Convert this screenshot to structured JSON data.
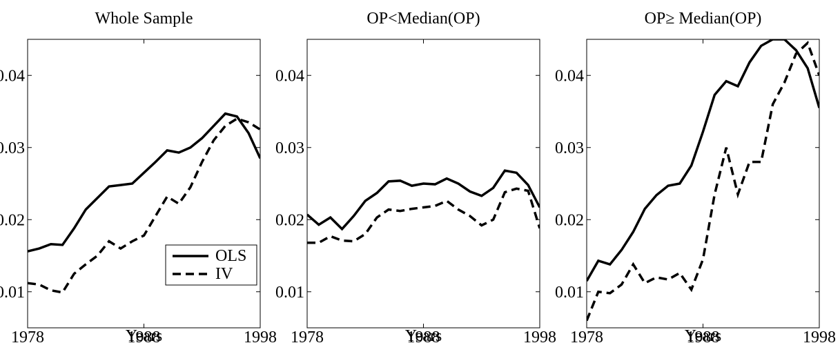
{
  "chart_data": [
    {
      "type": "line",
      "title": "Whole Sample",
      "xlabel": "Years",
      "x": [
        1978,
        1979,
        1980,
        1981,
        1982,
        1983,
        1984,
        1985,
        1986,
        1987,
        1988,
        1989,
        1990,
        1991,
        1992,
        1993,
        1994,
        1995,
        1996,
        1997,
        1998
      ],
      "series": [
        {
          "name": "OLS",
          "color": "#000000",
          "style": "solid",
          "values": [
            0.0156,
            0.016,
            0.0166,
            0.0165,
            0.0188,
            0.0214,
            0.023,
            0.0246,
            0.0248,
            0.025,
            0.0265,
            0.028,
            0.0296,
            0.0293,
            0.03,
            0.0313,
            0.033,
            0.0347,
            0.0343,
            0.032,
            0.0285
          ]
        },
        {
          "name": "IV",
          "color": "#000000",
          "style": "dashed",
          "values": [
            0.0112,
            0.011,
            0.0102,
            0.0099,
            0.0125,
            0.0138,
            0.015,
            0.017,
            0.016,
            0.017,
            0.0178,
            0.0205,
            0.0232,
            0.0222,
            0.0245,
            0.028,
            0.031,
            0.033,
            0.034,
            0.0335,
            0.0325
          ]
        }
      ],
      "xlim": [
        1978,
        1998
      ],
      "xticks": [
        1978,
        1988,
        1998
      ],
      "ylim": [
        0.005,
        0.045
      ],
      "yticks": [
        0.01,
        0.02,
        0.03,
        0.04
      ],
      "legend": "lower right"
    },
    {
      "type": "line",
      "title": "OP<Median(OP)",
      "xlabel": "Years",
      "x": [
        1978,
        1979,
        1980,
        1981,
        1982,
        1983,
        1984,
        1985,
        1986,
        1987,
        1988,
        1989,
        1990,
        1991,
        1992,
        1993,
        1994,
        1995,
        1996,
        1997,
        1998
      ],
      "series": [
        {
          "color": "#000000",
          "style": "solid",
          "values": [
            0.0207,
            0.0193,
            0.0203,
            0.0187,
            0.0205,
            0.0226,
            0.0237,
            0.0253,
            0.0254,
            0.0247,
            0.025,
            0.0249,
            0.0257,
            0.025,
            0.0239,
            0.0233,
            0.0244,
            0.0268,
            0.0265,
            0.0248,
            0.0217
          ]
        },
        {
          "color": "#000000",
          "style": "dashed",
          "values": [
            0.0168,
            0.0168,
            0.0177,
            0.0171,
            0.017,
            0.018,
            0.0203,
            0.0214,
            0.0212,
            0.0215,
            0.0217,
            0.0219,
            0.0226,
            0.0214,
            0.0205,
            0.0192,
            0.02,
            0.0238,
            0.0243,
            0.024,
            0.0188
          ]
        }
      ],
      "xlim": [
        1978,
        1998
      ],
      "xticks": [
        1978,
        1988,
        1998
      ],
      "ylim": [
        0.005,
        0.045
      ],
      "yticks": [
        0.01,
        0.02,
        0.03,
        0.04
      ]
    },
    {
      "type": "line",
      "title": "OP≥ Median(OP)",
      "xlabel": "Years",
      "x": [
        1978,
        1979,
        1980,
        1981,
        1982,
        1983,
        1984,
        1985,
        1986,
        1987,
        1988,
        1989,
        1990,
        1991,
        1992,
        1993,
        1994,
        1995,
        1996,
        1997,
        1998
      ],
      "series": [
        {
          "color": "#000000",
          "style": "solid",
          "values": [
            0.0115,
            0.0143,
            0.0138,
            0.0158,
            0.0183,
            0.0215,
            0.0234,
            0.0247,
            0.025,
            0.0275,
            0.0322,
            0.0373,
            0.0392,
            0.0385,
            0.0418,
            0.0441,
            0.045,
            0.045,
            0.0435,
            0.041,
            0.0355
          ]
        },
        {
          "color": "#000000",
          "style": "dashed",
          "values": [
            0.006,
            0.01,
            0.0098,
            0.011,
            0.0138,
            0.0112,
            0.012,
            0.0117,
            0.0126,
            0.0103,
            0.0145,
            0.0235,
            0.03,
            0.0235,
            0.028,
            0.028,
            0.036,
            0.039,
            0.043,
            0.0445,
            0.04
          ]
        }
      ],
      "xlim": [
        1978,
        1998
      ],
      "xticks": [
        1978,
        1988,
        1998
      ],
      "ylim": [
        0.005,
        0.045
      ],
      "yticks": [
        0.01,
        0.02,
        0.03,
        0.04
      ]
    }
  ]
}
